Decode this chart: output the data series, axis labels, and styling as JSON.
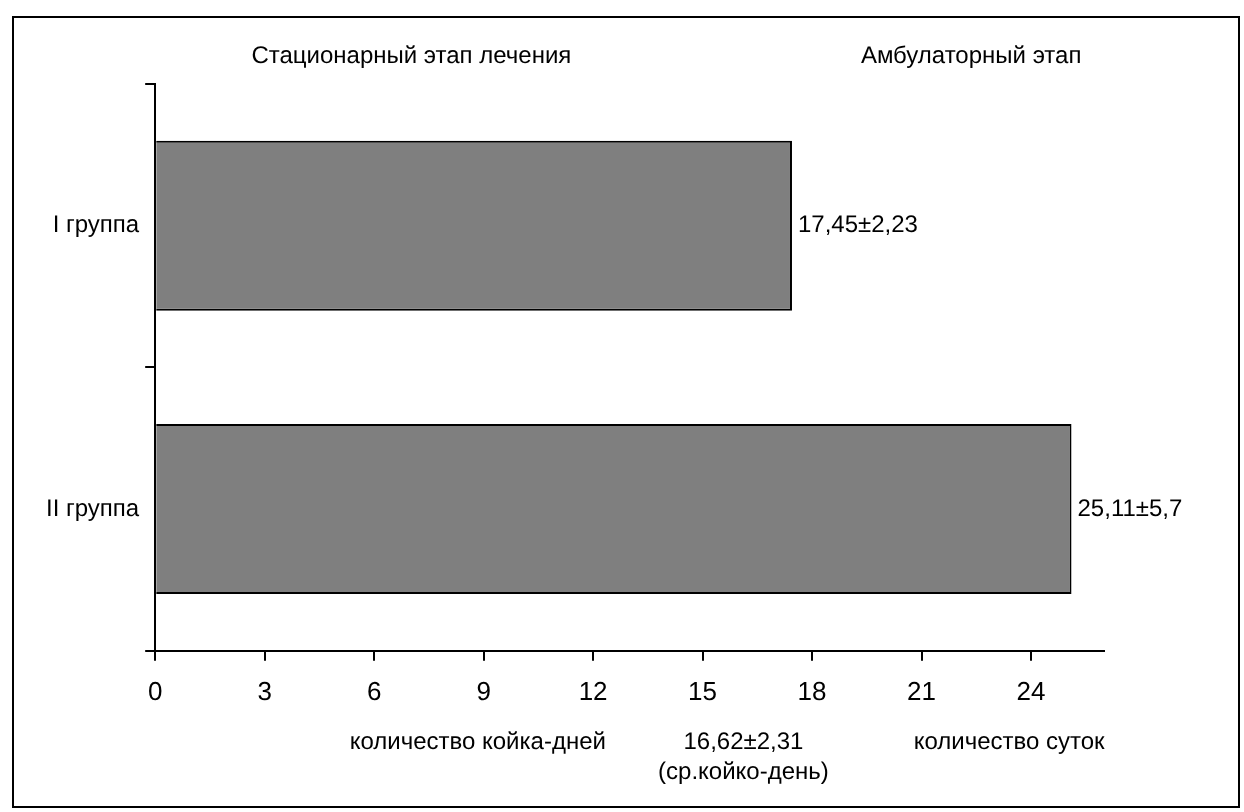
{
  "chart_data": {
    "type": "bar",
    "orientation": "horizontal",
    "categories": [
      "I группа",
      "II группа"
    ],
    "values": [
      17.45,
      25.11
    ],
    "color": "#7f7f7f",
    "value_labels": [
      "17,45±2,23",
      "25,11±5,7"
    ],
    "xlim": [
      0,
      26
    ],
    "xticks": [
      0,
      3,
      6,
      9,
      12,
      15,
      18,
      21,
      24
    ],
    "grid": false,
    "legend": false,
    "annotations": [
      "Стационарный этап лечения",
      "Амбулаторный этап",
      "количество койка-дней",
      "16,62±2,31\n(ср.койко-день)",
      "количество суток"
    ]
  }
}
